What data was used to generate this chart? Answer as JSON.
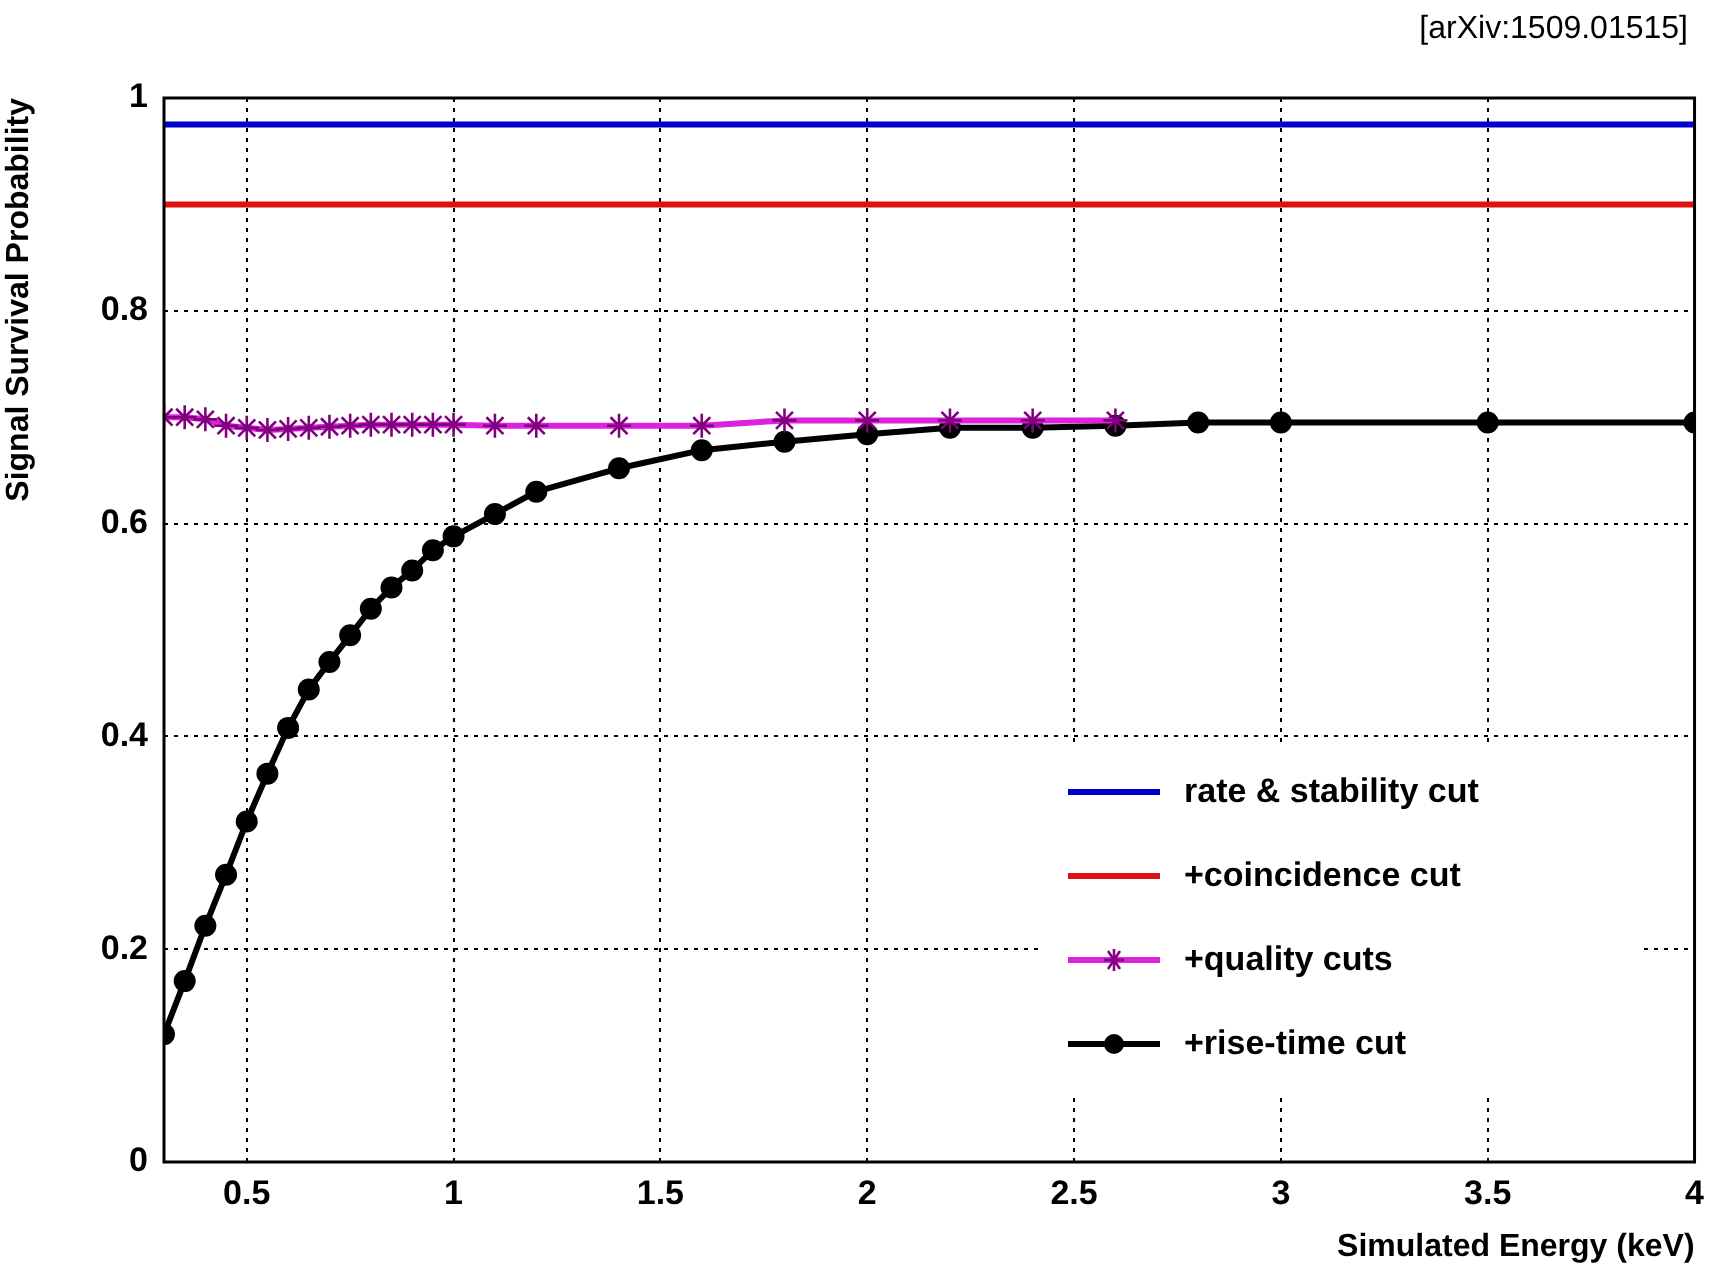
{
  "chart_data": {
    "type": "line",
    "xlabel": "Simulated Energy (keV)",
    "ylabel": "Signal Survival Probability",
    "annotations": [
      "[arXiv:1509.01515]"
    ],
    "xlim": [
      0.3,
      4
    ],
    "ylim": [
      0,
      1
    ],
    "xticks": [
      0.5,
      1,
      1.5,
      2,
      2.5,
      3,
      3.5,
      4
    ],
    "yticks": [
      0,
      0.2,
      0.4,
      0.6,
      0.8,
      1
    ],
    "grid": true,
    "legend": "bottom right",
    "line_style": "solid",
    "series": [
      {
        "name": "rate & stability cut",
        "color": "#0000cc",
        "marker": "none",
        "x": [
          0.3,
          4
        ],
        "values": [
          0.975,
          0.975
        ]
      },
      {
        "name": "+coincidence cut",
        "color": "#dd1111",
        "marker": "none",
        "x": [
          0.3,
          4
        ],
        "values": [
          0.9,
          0.9
        ]
      },
      {
        "name": "+quality cuts",
        "color": "#dd22dd",
        "marker": "cross",
        "x": [
          0.3,
          0.35,
          0.4,
          0.45,
          0.5,
          0.55,
          0.6,
          0.65,
          0.7,
          0.75,
          0.8,
          0.85,
          0.9,
          0.95,
          1,
          1.1,
          1.2,
          1.4,
          1.6,
          1.8,
          2,
          2.2,
          2.4,
          2.6
        ],
        "values": [
          0.7,
          0.7,
          0.698,
          0.692,
          0.69,
          0.688,
          0.689,
          0.69,
          0.691,
          0.692,
          0.693,
          0.693,
          0.693,
          0.693,
          0.693,
          0.692,
          0.692,
          0.692,
          0.692,
          0.697,
          0.697,
          0.697,
          0.697,
          0.697
        ]
      },
      {
        "name": "+rise-time cut",
        "color": "#000000",
        "marker": "circle",
        "x": [
          0.3,
          0.35,
          0.4,
          0.45,
          0.5,
          0.55,
          0.6,
          0.65,
          0.7,
          0.75,
          0.8,
          0.85,
          0.9,
          0.95,
          1,
          1.1,
          1.2,
          1.4,
          1.6,
          1.8,
          2,
          2.2,
          2.4,
          2.6,
          2.8,
          3,
          3.5,
          4
        ],
        "values": [
          0.12,
          0.17,
          0.222,
          0.27,
          0.32,
          0.365,
          0.408,
          0.444,
          0.47,
          0.495,
          0.52,
          0.54,
          0.556,
          0.575,
          0.588,
          0.609,
          0.63,
          0.652,
          0.669,
          0.677,
          0.684,
          0.69,
          0.69,
          0.692,
          0.695,
          0.695,
          0.695,
          0.695
        ]
      }
    ]
  }
}
